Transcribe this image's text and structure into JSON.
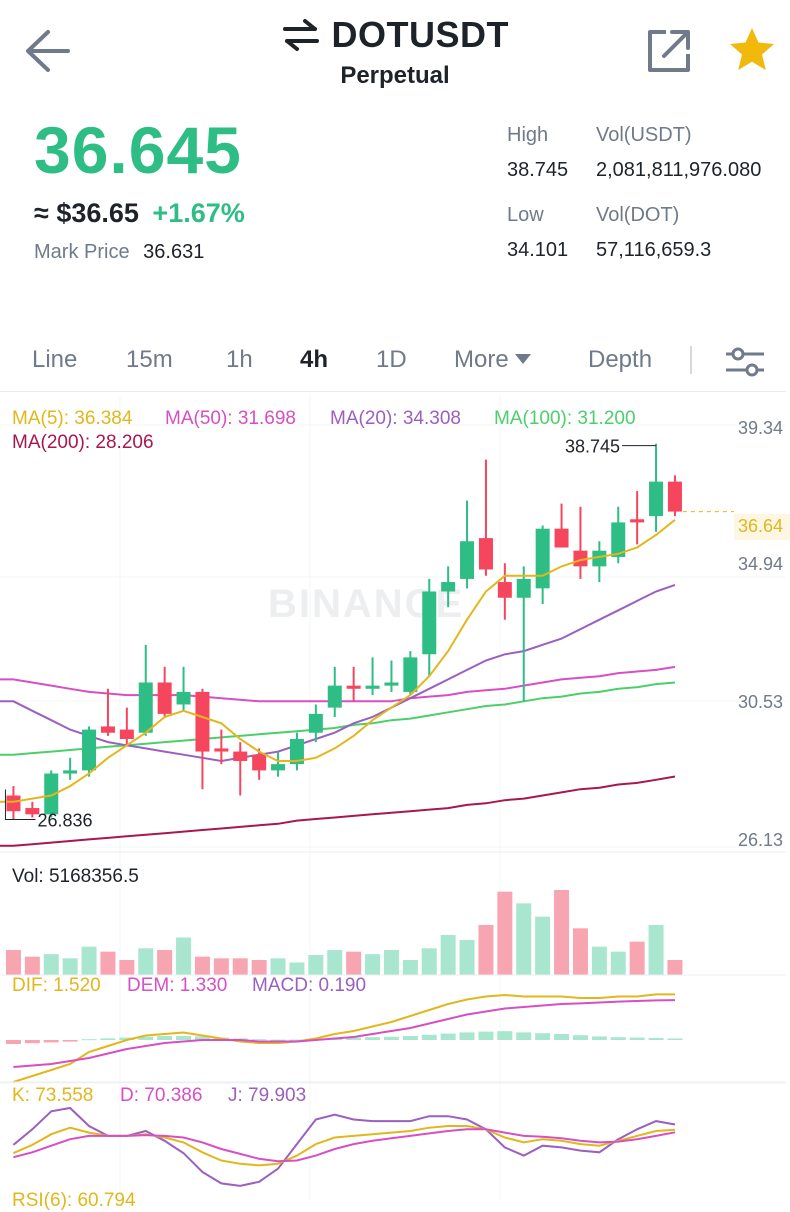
{
  "header": {
    "symbol": "DOTUSDT",
    "subtitle": "Perpetual"
  },
  "price": {
    "last": "36.645",
    "usd": "≈ $36.65",
    "change_pct": "+1.67%",
    "mark_label": "Mark Price",
    "mark_value": "36.631"
  },
  "stats": {
    "high_label": "High",
    "high_value": "38.745",
    "vol_usdt_label": "Vol(USDT)",
    "vol_usdt_value": "2,081,811,976.080",
    "low_label": "Low",
    "low_value": "34.101",
    "vol_dot_label": "Vol(DOT)",
    "vol_dot_value": "57,116,659.3"
  },
  "tabs": {
    "line": "Line",
    "m15": "15m",
    "h1": "1h",
    "h4": "4h",
    "d1": "1D",
    "more": "More",
    "depth": "Depth",
    "active": "4h"
  },
  "ma_legend": {
    "ma5": "MA(5): 36.384",
    "ma50": "MA(50): 31.698",
    "ma20": "MA(20): 34.308",
    "ma100": "MA(100): 31.200",
    "ma200": "MA(200): 28.206"
  },
  "axis": {
    "p1": "39.34",
    "p2": "34.94",
    "p3": "30.53",
    "p4": "26.13",
    "current": "36.64"
  },
  "annotations": {
    "high": "38.745",
    "low": "26.836"
  },
  "watermark": "BINANCE",
  "indicators": {
    "vol": "Vol: 5168356.5",
    "dif": "DIF: 1.520",
    "dem": "DEM: 1.330",
    "macd": "MACD: 0.190",
    "k": "K: 73.558",
    "d": "D: 70.386",
    "j": "J: 79.903",
    "rsi": "RSI(6): 60.794"
  },
  "colors": {
    "up": "#2ebd85",
    "down": "#f6465d",
    "ma5": "#e2b71c",
    "ma20": "#9b5fbf",
    "ma50": "#d64fc4",
    "ma100": "#4ccf6b",
    "ma200": "#a8174f"
  },
  "chart_data": {
    "type": "candlestick",
    "interval": "4h",
    "ylim": [
      25.8,
      39.34
    ],
    "candles": [
      {
        "o": 27.6,
        "c": 27.1,
        "h": 27.9,
        "l": 26.836
      },
      {
        "o": 27.2,
        "c": 27.0,
        "h": 27.4,
        "l": 26.9
      },
      {
        "o": 27.0,
        "c": 28.3,
        "h": 28.4,
        "l": 26.9
      },
      {
        "o": 28.3,
        "c": 28.4,
        "h": 28.8,
        "l": 28.1
      },
      {
        "o": 28.4,
        "c": 29.7,
        "h": 29.8,
        "l": 28.2
      },
      {
        "o": 29.8,
        "c": 29.6,
        "h": 31.0,
        "l": 29.5
      },
      {
        "o": 29.7,
        "c": 29.4,
        "h": 30.4,
        "l": 29.2
      },
      {
        "o": 29.6,
        "c": 31.2,
        "h": 32.4,
        "l": 29.5
      },
      {
        "o": 31.2,
        "c": 30.2,
        "h": 31.7,
        "l": 30.1
      },
      {
        "o": 30.5,
        "c": 30.9,
        "h": 31.7,
        "l": 30.3
      },
      {
        "o": 30.9,
        "c": 29.0,
        "h": 31.0,
        "l": 27.8
      },
      {
        "o": 29.1,
        "c": 29.0,
        "h": 29.7,
        "l": 28.6
      },
      {
        "o": 29.0,
        "c": 28.7,
        "h": 29.3,
        "l": 27.6
      },
      {
        "o": 28.9,
        "c": 28.4,
        "h": 29.1,
        "l": 28.1
      },
      {
        "o": 28.4,
        "c": 28.6,
        "h": 29.0,
        "l": 28.2
      },
      {
        "o": 28.6,
        "c": 29.4,
        "h": 29.6,
        "l": 28.4
      },
      {
        "o": 29.6,
        "c": 30.2,
        "h": 30.5,
        "l": 29.3
      },
      {
        "o": 30.4,
        "c": 31.1,
        "h": 31.7,
        "l": 30.1
      },
      {
        "o": 31.1,
        "c": 31.0,
        "h": 31.7,
        "l": 30.6
      },
      {
        "o": 31.0,
        "c": 31.1,
        "h": 32.0,
        "l": 30.8
      },
      {
        "o": 31.1,
        "c": 31.2,
        "h": 31.9,
        "l": 30.9
      },
      {
        "o": 30.9,
        "c": 32.0,
        "h": 32.2,
        "l": 30.8
      },
      {
        "o": 32.1,
        "c": 34.1,
        "h": 34.5,
        "l": 31.4
      },
      {
        "o": 34.1,
        "c": 34.4,
        "h": 34.9,
        "l": 33.6
      },
      {
        "o": 34.5,
        "c": 35.7,
        "h": 37.0,
        "l": 34.2
      },
      {
        "o": 35.8,
        "c": 34.8,
        "h": 38.3,
        "l": 34.6
      },
      {
        "o": 34.4,
        "c": 33.9,
        "h": 35.0,
        "l": 33.2
      },
      {
        "o": 33.9,
        "c": 34.5,
        "h": 34.9,
        "l": 30.6
      },
      {
        "o": 34.2,
        "c": 36.1,
        "h": 36.2,
        "l": 33.7
      },
      {
        "o": 36.1,
        "c": 35.5,
        "h": 36.9,
        "l": 35.5
      },
      {
        "o": 35.4,
        "c": 34.9,
        "h": 36.8,
        "l": 34.5
      },
      {
        "o": 34.9,
        "c": 35.4,
        "h": 35.7,
        "l": 34.4
      },
      {
        "o": 35.2,
        "c": 36.3,
        "h": 36.8,
        "l": 35.0
      },
      {
        "o": 36.4,
        "c": 36.3,
        "h": 37.3,
        "l": 35.6
      },
      {
        "o": 36.5,
        "c": 37.6,
        "h": 38.745,
        "l": 36.0
      },
      {
        "o": 37.6,
        "c": 36.645,
        "h": 37.8,
        "l": 36.5
      }
    ],
    "ma5": [
      27.4,
      27.5,
      27.6,
      27.9,
      28.3,
      28.8,
      29.2,
      29.6,
      30.1,
      30.3,
      30.1,
      29.9,
      29.4,
      29.0,
      28.7,
      28.7,
      28.8,
      29.1,
      29.5,
      30.0,
      30.4,
      30.8,
      31.4,
      32.2,
      33.2,
      34.1,
      34.6,
      34.6,
      34.6,
      34.9,
      35.1,
      35.2,
      35.3,
      35.5,
      35.9,
      36.384
    ],
    "ma20": [
      30.6,
      30.3,
      30.0,
      29.7,
      29.5,
      29.3,
      29.2,
      29.1,
      29.0,
      28.9,
      28.8,
      28.7,
      28.8,
      28.9,
      29.0,
      29.2,
      29.4,
      29.6,
      29.9,
      30.1,
      30.4,
      30.7,
      31.0,
      31.3,
      31.6,
      31.9,
      32.1,
      32.2,
      32.4,
      32.6,
      32.9,
      33.2,
      33.5,
      33.8,
      34.1,
      34.308
    ],
    "ma50": [
      31.3,
      31.2,
      31.1,
      31.0,
      30.9,
      30.85,
      30.8,
      30.8,
      30.8,
      30.8,
      30.75,
      30.7,
      30.65,
      30.6,
      30.6,
      30.6,
      30.6,
      30.6,
      30.6,
      30.6,
      30.6,
      30.7,
      30.75,
      30.8,
      30.9,
      30.95,
      31.0,
      31.1,
      31.2,
      31.3,
      31.35,
      31.4,
      31.5,
      31.55,
      31.6,
      31.698
    ],
    "ma100": [
      28.9,
      28.95,
      29.0,
      29.05,
      29.1,
      29.15,
      29.2,
      29.25,
      29.3,
      29.35,
      29.4,
      29.45,
      29.5,
      29.55,
      29.6,
      29.65,
      29.7,
      29.75,
      29.85,
      29.9,
      30.0,
      30.05,
      30.15,
      30.25,
      30.35,
      30.45,
      30.5,
      30.6,
      30.7,
      30.75,
      30.85,
      30.9,
      31.0,
      31.05,
      31.15,
      31.2
    ],
    "ma200": [
      26.0,
      26.05,
      26.1,
      26.15,
      26.2,
      26.25,
      26.3,
      26.35,
      26.4,
      26.45,
      26.5,
      26.55,
      26.6,
      26.65,
      26.7,
      26.8,
      26.85,
      26.9,
      26.95,
      27.0,
      27.05,
      27.1,
      27.15,
      27.2,
      27.3,
      27.35,
      27.45,
      27.5,
      27.6,
      27.7,
      27.8,
      27.85,
      27.95,
      28.0,
      28.1,
      28.206
    ],
    "volume": [
      30,
      22,
      25,
      20,
      34,
      28,
      18,
      32,
      30,
      45,
      22,
      20,
      20,
      18,
      20,
      15,
      24,
      30,
      28,
      25,
      30,
      18,
      32,
      48,
      42,
      60,
      100,
      86,
      70,
      102,
      56,
      34,
      28,
      40,
      60,
      18
    ],
    "macd_hist": [
      -0.5,
      -0.4,
      -0.3,
      -0.2,
      0.1,
      0.2,
      0.3,
      0.4,
      0.5,
      0.5,
      0.45,
      0.3,
      0.2,
      0.1,
      0.05,
      0.05,
      0.15,
      0.25,
      0.3,
      0.35,
      0.4,
      0.5,
      0.65,
      0.8,
      0.95,
      1.05,
      1.1,
      0.95,
      0.85,
      0.75,
      0.6,
      0.45,
      0.35,
      0.3,
      0.25,
      0.19
    ],
    "dif": [
      -1.4,
      -1.2,
      -1.0,
      -0.8,
      -0.4,
      -0.2,
      0.0,
      0.15,
      0.2,
      0.25,
      0.15,
      0.05,
      -0.05,
      -0.1,
      -0.1,
      -0.05,
      0.05,
      0.2,
      0.3,
      0.45,
      0.6,
      0.8,
      1.0,
      1.2,
      1.35,
      1.45,
      1.5,
      1.45,
      1.45,
      1.45,
      1.4,
      1.4,
      1.45,
      1.45,
      1.52,
      1.52
    ],
    "dem": [
      -0.9,
      -0.85,
      -0.8,
      -0.7,
      -0.6,
      -0.45,
      -0.3,
      -0.2,
      -0.1,
      -0.05,
      0.0,
      0.0,
      0.0,
      -0.05,
      -0.05,
      -0.05,
      0.0,
      0.05,
      0.1,
      0.2,
      0.3,
      0.4,
      0.55,
      0.7,
      0.85,
      0.95,
      1.05,
      1.1,
      1.15,
      1.2,
      1.22,
      1.25,
      1.28,
      1.3,
      1.32,
      1.33
    ],
    "k": [
      45,
      55,
      68,
      76,
      70,
      66,
      66,
      68,
      64,
      58,
      46,
      36,
      32,
      30,
      32,
      42,
      56,
      64,
      66,
      68,
      70,
      72,
      76,
      78,
      78,
      74,
      64,
      58,
      62,
      60,
      56,
      54,
      60,
      66,
      72,
      73.558
    ],
    "d": [
      40,
      46,
      54,
      62,
      66,
      66,
      66,
      67,
      66,
      64,
      58,
      50,
      44,
      38,
      35,
      36,
      42,
      50,
      56,
      60,
      63,
      66,
      69,
      72,
      74,
      74,
      70,
      66,
      65,
      63,
      60,
      58,
      59,
      62,
      66,
      70.386
    ],
    "j": [
      55,
      74,
      96,
      100,
      78,
      66,
      66,
      72,
      60,
      45,
      22,
      8,
      5,
      10,
      26,
      56,
      86,
      92,
      86,
      84,
      84,
      84,
      90,
      90,
      86,
      74,
      52,
      42,
      54,
      52,
      48,
      46,
      62,
      74,
      84,
      79.903
    ]
  }
}
